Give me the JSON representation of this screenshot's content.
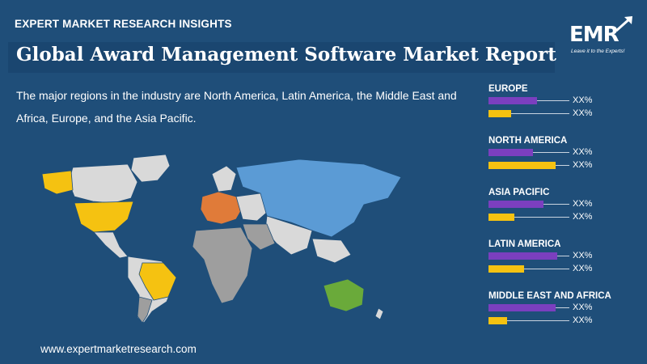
{
  "header": {
    "top_label": "EXPERT MARKET RESEARCH INSIGHTS",
    "title": "Global Award Management Software Market Report"
  },
  "logo": {
    "text": "EMR",
    "tagline": "Leave it to the Experts!"
  },
  "intro": "The major regions in the industry are North America, Latin America, the Middle East and Africa, Europe, and the Asia Pacific.",
  "footer": "www.expertmarketresearch.com",
  "colors": {
    "background": "#1f4e79",
    "purple": "#7b3fbf",
    "yellow": "#f5c211",
    "north_america": "#f5c211",
    "latin_america": "#f5c211",
    "europe": "#e07b39",
    "asia_pacific": "#5b9bd5",
    "oceania": "#6aaa3a",
    "other": "#d9d9d9",
    "mea": "#9e9e9e"
  },
  "regions": [
    {
      "name": "EUROPE",
      "purple_value": 0.6,
      "yellow_value": 0.28,
      "purple_label": "XX%",
      "yellow_label": "XX%"
    },
    {
      "name": "NORTH AMERICA",
      "purple_value": 0.55,
      "yellow_value": 0.83,
      "purple_label": "XX%",
      "yellow_label": "XX%"
    },
    {
      "name": "ASIA PACIFIC",
      "purple_value": 0.68,
      "yellow_value": 0.32,
      "purple_label": "XX%",
      "yellow_label": "XX%"
    },
    {
      "name": "LATIN AMERICA",
      "purple_value": 0.85,
      "yellow_value": 0.44,
      "purple_label": "XX%",
      "yellow_label": "XX%"
    },
    {
      "name": "MIDDLE EAST AND AFRICA",
      "purple_value": 0.83,
      "yellow_value": 0.23,
      "purple_label": "XX%",
      "yellow_label": "XX%"
    }
  ]
}
